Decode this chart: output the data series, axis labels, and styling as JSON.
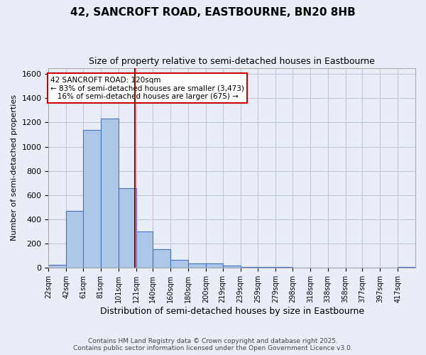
{
  "title": "42, SANCROFT ROAD, EASTBOURNE, BN20 8HB",
  "subtitle": "Size of property relative to semi-detached houses in Eastbourne",
  "xlabel": "Distribution of semi-detached houses by size in Eastbourne",
  "ylabel": "Number of semi-detached properties",
  "footer_line1": "Contains HM Land Registry data © Crown copyright and database right 2025.",
  "footer_line2": "Contains public sector information licensed under the Open Government Licence v3.0.",
  "bin_labels": [
    "22sqm",
    "42sqm",
    "61sqm",
    "81sqm",
    "101sqm",
    "121sqm",
    "140sqm",
    "160sqm",
    "180sqm",
    "200sqm",
    "219sqm",
    "239sqm",
    "259sqm",
    "279sqm",
    "298sqm",
    "318sqm",
    "338sqm",
    "358sqm",
    "377sqm",
    "397sqm",
    "417sqm"
  ],
  "bin_values": [
    25,
    470,
    1140,
    1230,
    660,
    300,
    155,
    65,
    40,
    35,
    18,
    10,
    8,
    5,
    3,
    2,
    2,
    1,
    1,
    1,
    8
  ],
  "bar_color": "#aec6e8",
  "bar_edge_color": "#4472c4",
  "grid_color": "#c0c8d8",
  "bg_color": "#e8edf8",
  "property_line_x": 120,
  "property_line_color": "#aa0000",
  "annotation_text": "42 SANCROFT ROAD: 120sqm\n← 83% of semi-detached houses are smaller (3,473)\n   16% of semi-detached houses are larger (675) →",
  "annotation_box_color": "#ffffff",
  "annotation_box_edge": "#cc0000",
  "ylim": [
    0,
    1650
  ],
  "yticks": [
    0,
    200,
    400,
    600,
    800,
    1000,
    1200,
    1400,
    1600
  ]
}
